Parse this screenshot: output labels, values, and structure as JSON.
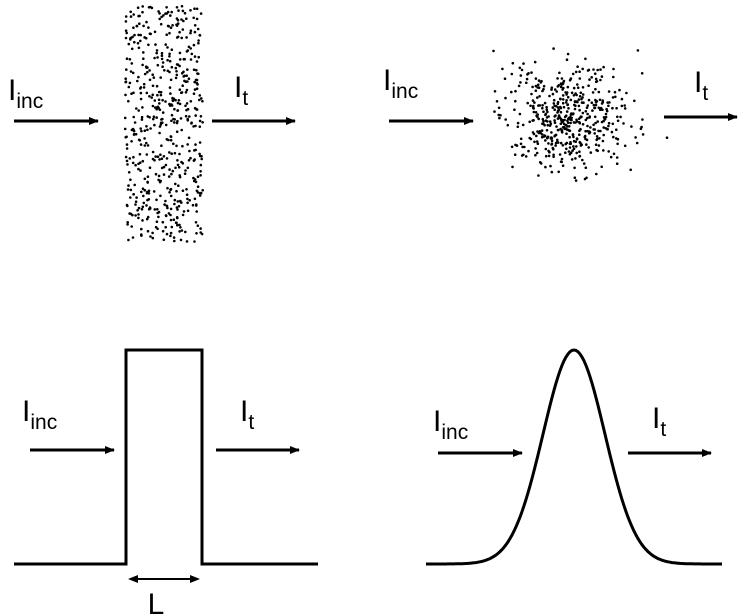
{
  "colors": {
    "ink": "#000000",
    "background": "#ffffff"
  },
  "labels": {
    "incident": {
      "main": "I",
      "sub": "inc"
    },
    "transmitted": {
      "main": "I",
      "sub": "t"
    },
    "length": "L"
  },
  "panels": [
    {
      "name": "slab-scatterers",
      "shape": "uniform slab of random point scatterers"
    },
    {
      "name": "gaussian-cloud",
      "shape": "Gaussian cloud of random point scatterers"
    },
    {
      "name": "rectangular-profile",
      "shape": "rectangular density profile"
    },
    {
      "name": "gaussian-profile",
      "shape": "Gaussian density profile"
    }
  ]
}
